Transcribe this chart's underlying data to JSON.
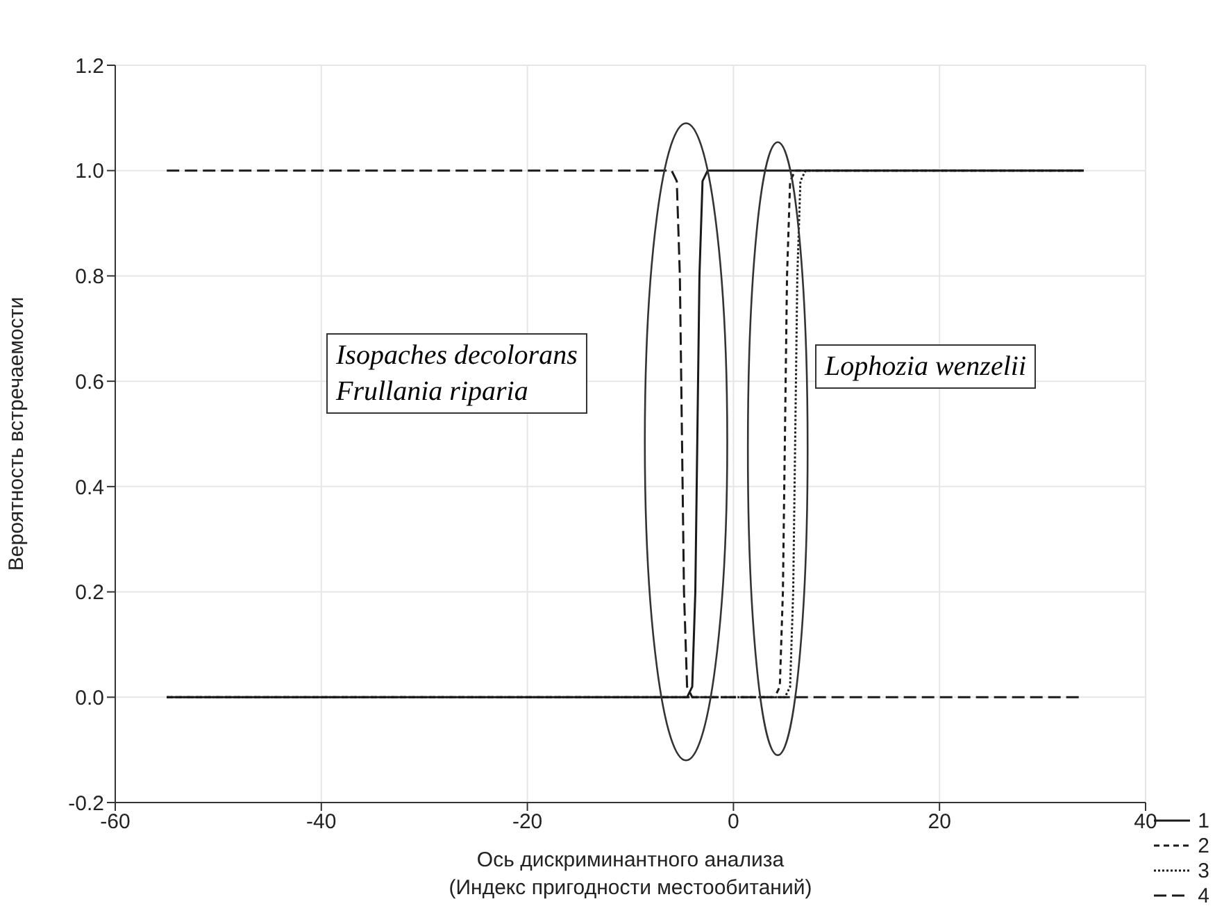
{
  "chart_data": {
    "type": "line",
    "xlabel": "Ось дискриминантного анализа\n(Индекс пригодности местообитаний)",
    "ylabel": "Вероятность встречаемости",
    "xlim": [
      -60,
      40
    ],
    "xticks": [
      -60,
      -40,
      -20,
      0,
      20,
      40
    ],
    "ylim": [
      -0.2,
      1.2
    ],
    "yticks": [
      {
        "value": -0.2,
        "label": "-0.2"
      },
      {
        "value": 0,
        "label": "0.0"
      },
      {
        "value": 0.2,
        "label": "0.2"
      },
      {
        "value": 0.4,
        "label": "0.4"
      },
      {
        "value": 0.6,
        "label": "0.6"
      },
      {
        "value": 0.8,
        "label": "0.8"
      },
      {
        "value": 1,
        "label": "1.0"
      },
      {
        "value": 1.2,
        "label": "1.2"
      }
    ],
    "grid": true,
    "legend": "bottom right",
    "marker": "none",
    "series": [
      {
        "name": "1",
        "color": "#1a1a1a",
        "line_style": "solid",
        "x": [
          -55,
          -4.5,
          -4,
          -3.7,
          -3.5,
          -3.3,
          -3,
          -2.5,
          34
        ],
        "values": [
          0,
          0,
          0.02,
          0.2,
          0.5,
          0.8,
          0.98,
          1,
          1
        ]
      },
      {
        "name": "2",
        "color": "#1a1a1a",
        "line_style": "dashed",
        "x": [
          -55,
          4,
          4.5,
          4.8,
          5,
          5.2,
          5.5,
          6,
          34
        ],
        "values": [
          0,
          0,
          0.02,
          0.2,
          0.5,
          0.8,
          0.98,
          1,
          1
        ]
      },
      {
        "name": "3",
        "color": "#1a1a1a",
        "line_style": "dotted",
        "x": [
          -55,
          5,
          5.5,
          5.8,
          6,
          6.2,
          6.5,
          7,
          34
        ],
        "values": [
          0,
          0,
          0.02,
          0.2,
          0.5,
          0.8,
          0.98,
          1,
          1
        ]
      },
      {
        "name": "4",
        "color": "#1a1a1a",
        "line_style": "longdash",
        "x": [
          -55,
          -6,
          -5.5,
          -5.2,
          -5,
          -4.8,
          -4.5,
          -4,
          34
        ],
        "values": [
          1,
          1,
          0.98,
          0.8,
          0.5,
          0.2,
          0.02,
          0,
          0
        ]
      }
    ],
    "annotations": [
      "Isopaches decolorans",
      "Frullania riparia",
      "Lophozia wenzelii"
    ]
  }
}
